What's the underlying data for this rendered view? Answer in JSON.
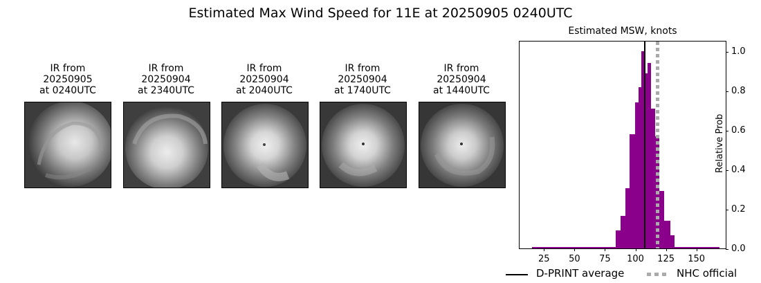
{
  "suptitle": "Estimated Max Wind Speed for 11E at 20250905 0240UTC",
  "ir_panels": [
    {
      "line1": "IR from",
      "line2": "20250905",
      "line3": "at 0240UTC"
    },
    {
      "line1": "IR from",
      "line2": "20250904",
      "line3": "at 2340UTC"
    },
    {
      "line1": "IR from",
      "line2": "20250904",
      "line3": "at 2040UTC"
    },
    {
      "line1": "IR from",
      "line2": "20250904",
      "line3": "at 1740UTC"
    },
    {
      "line1": "IR from",
      "line2": "20250904",
      "line3": "at 1440UTC"
    }
  ],
  "legend": {
    "dprint_label": "D-PRINT average",
    "nhc_label": "NHC official"
  },
  "colors": {
    "bar": "#8b008b",
    "dprint_line": "#000000",
    "nhc_line": "#aaaaaa"
  },
  "chart_data": {
    "type": "bar",
    "title": "Estimated MSW, knots",
    "xlabel": "",
    "ylabel": "Relative Prob",
    "xlim": [
      5,
      174
    ],
    "ylim": [
      0,
      1.05
    ],
    "xticks": [
      25,
      50,
      75,
      100,
      125,
      150
    ],
    "yticks": [
      0.0,
      0.2,
      0.4,
      0.6,
      0.8,
      1.0
    ],
    "ytick_labels": [
      "0.0",
      "0.2",
      "0.4",
      "0.6",
      "0.8",
      "1.0"
    ],
    "y_axis_side": "right",
    "bins": [
      {
        "x0": 15,
        "x1": 84,
        "value": 0.007
      },
      {
        "x0": 84,
        "x1": 88,
        "value": 0.09
      },
      {
        "x0": 88,
        "x1": 92,
        "value": 0.165
      },
      {
        "x0": 92,
        "x1": 95,
        "value": 0.305
      },
      {
        "x0": 95,
        "x1": 99.5,
        "value": 0.58
      },
      {
        "x0": 99.5,
        "x1": 102.5,
        "value": 0.74
      },
      {
        "x0": 102.5,
        "x1": 105,
        "value": 0.82
      },
      {
        "x0": 105,
        "x1": 108,
        "value": 1.0
      },
      {
        "x0": 108,
        "x1": 110,
        "value": 0.89
      },
      {
        "x0": 110,
        "x1": 112.5,
        "value": 0.94
      },
      {
        "x0": 112.5,
        "x1": 116,
        "value": 0.71
      },
      {
        "x0": 116,
        "x1": 119.5,
        "value": 0.57
      },
      {
        "x0": 119.5,
        "x1": 123.5,
        "value": 0.29
      },
      {
        "x0": 123.5,
        "x1": 128.5,
        "value": 0.14
      },
      {
        "x0": 128.5,
        "x1": 132,
        "value": 0.067
      },
      {
        "x0": 132,
        "x1": 169,
        "value": 0.007
      }
    ],
    "dprint_average": 107.5,
    "nhc_official": 118,
    "legend_position": "below"
  }
}
